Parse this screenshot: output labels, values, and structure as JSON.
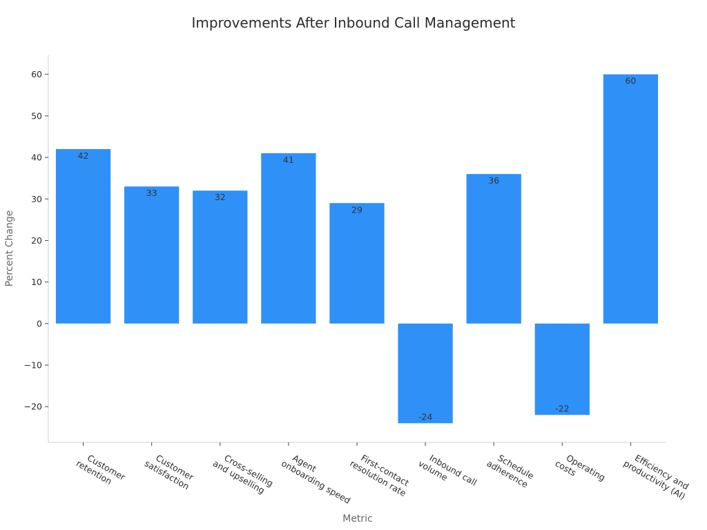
{
  "chart_data": {
    "type": "bar",
    "title": "Improvements After Inbound Call Management",
    "xlabel": "Metric",
    "ylabel": "Percent Change",
    "categories": [
      [
        "Customer",
        "retention"
      ],
      [
        "Customer",
        "satisfaction"
      ],
      [
        "Cross-selling",
        "and upselling"
      ],
      [
        "Agent",
        "onboarding speed"
      ],
      [
        "First-contact",
        "resolution rate"
      ],
      [
        "Inbound call",
        "volume"
      ],
      [
        "Schedule",
        "adherence"
      ],
      [
        "Operating",
        "costs"
      ],
      [
        "Efficiency and",
        "productivity (AI)"
      ]
    ],
    "values": [
      42,
      33,
      32,
      41,
      29,
      -24,
      36,
      -22,
      60
    ],
    "data_labels": [
      "42",
      "33",
      "32",
      "41",
      "29",
      "-24",
      "36",
      "-22",
      "60"
    ],
    "ylim": [
      -28.6,
      64.6
    ],
    "yticks": [
      -20,
      -10,
      0,
      10,
      20,
      30,
      40,
      50,
      60
    ],
    "ytick_labels": [
      "−20",
      "−10",
      "0",
      "10",
      "20",
      "30",
      "40",
      "50",
      "60"
    ],
    "bar_color": "#2f91f7",
    "grid": false,
    "legend": "none"
  }
}
